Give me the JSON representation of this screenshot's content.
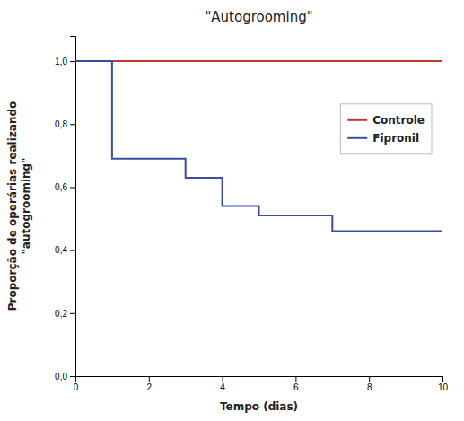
{
  "chart_data": {
    "type": "line",
    "title": "\"Autogrooming\"",
    "xlabel": "Tempo (dias)",
    "ylabel": "Proporção de operárias realizando\n\"autogrooming\"",
    "xlim": [
      0,
      10
    ],
    "ylim": [
      0.0,
      1.08
    ],
    "xticks": [
      0,
      2,
      4,
      6,
      8,
      10
    ],
    "yticks": [
      {
        "value": 0.0,
        "label": "0,0"
      },
      {
        "value": 0.2,
        "label": "0,2"
      },
      {
        "value": 0.4,
        "label": "0,4"
      },
      {
        "value": 0.6,
        "label": "0,6"
      },
      {
        "value": 0.8,
        "label": "0,8"
      },
      {
        "value": 1.0,
        "label": "1,0"
      }
    ],
    "series": [
      {
        "name": "Controle",
        "color": "#c0392b",
        "x": [
          0,
          0.5,
          8.0,
          10
        ],
        "values": [
          1.0,
          1.0,
          1.0,
          1.0
        ]
      },
      {
        "name": "Fipronil",
        "color": "#3b4da0",
        "x": [
          0,
          1.0,
          1.0,
          3.0,
          3.0,
          4.0,
          4.0,
          5.0,
          5.0,
          7.0,
          7.0,
          7.7,
          7.7,
          10
        ],
        "values": [
          1.0,
          1.0,
          0.69,
          0.69,
          0.63,
          0.63,
          0.54,
          0.54,
          0.51,
          0.51,
          0.46,
          0.46,
          0.46,
          0.46
        ]
      }
    ],
    "legend": "upper right",
    "grid": false
  }
}
